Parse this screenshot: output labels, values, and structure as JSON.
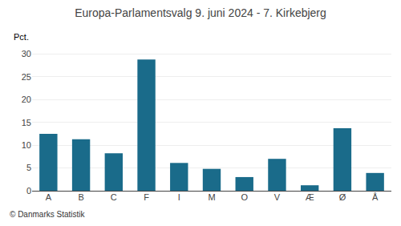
{
  "chart_data": {
    "type": "bar",
    "title": "Europa-Parlamentsvalg 9. juni 2024 - 7. Kirkebjerg",
    "categories": [
      "A",
      "B",
      "C",
      "F",
      "I",
      "M",
      "O",
      "V",
      "Æ",
      "Ø",
      "Å"
    ],
    "values": [
      12.5,
      11.3,
      8.2,
      28.8,
      6.1,
      4.8,
      3.0,
      7.0,
      1.2,
      13.7,
      3.9
    ],
    "color": "#1a6b8a",
    "ylabel": "Pct.",
    "annotations": [
      "© Danmarks Statistik"
    ],
    "ylim": [
      0,
      32
    ],
    "yticks": [
      0,
      5,
      10,
      15,
      20,
      25,
      30
    ],
    "grid": true
  }
}
